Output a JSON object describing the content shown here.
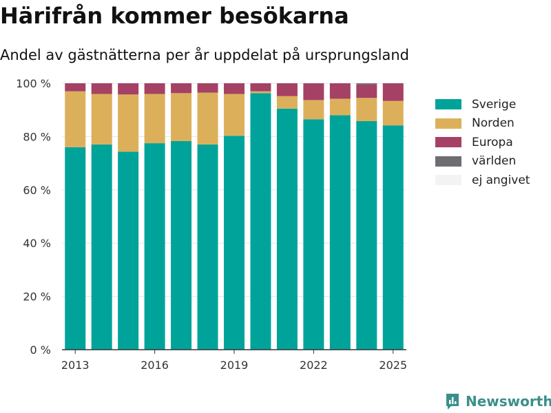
{
  "header": {
    "title": "Härifrån kommer besökarna",
    "subtitle": "Andel av gästnätterna per år uppdelat på ursprungsland"
  },
  "brand": {
    "name": "Newsworthy",
    "icon": "newsworthy-logo-icon",
    "color": "#3b8f8a"
  },
  "chart_data": {
    "type": "bar",
    "stacked": true,
    "categories": [
      "2013",
      "2014",
      "2015",
      "2016",
      "2017",
      "2018",
      "2019",
      "2020",
      "2021",
      "2022",
      "2023",
      "2024",
      "2025"
    ],
    "x_ticks": [
      "2013",
      "2016",
      "2019",
      "2022",
      "2025"
    ],
    "y_ticks": [
      "0 %",
      "20 %",
      "40 %",
      "60 %",
      "80 %",
      "100 %"
    ],
    "ylim": [
      0,
      100
    ],
    "grid": true,
    "legend_position": "right",
    "series": [
      {
        "name": "Sverige",
        "color": "#00a39a",
        "values": [
          76,
          77,
          74.3,
          77.5,
          78.3,
          77,
          80.3,
          96.3,
          90.5,
          86.5,
          88,
          85.8,
          84.2
        ]
      },
      {
        "name": "Norden",
        "color": "#dcb05b",
        "values": [
          21,
          19,
          21.5,
          18.5,
          18,
          19.5,
          15.7,
          0.7,
          4.7,
          7.2,
          6.2,
          8.7,
          9.2
        ]
      },
      {
        "name": "Europa",
        "color": "#a54165",
        "values": [
          3,
          4,
          4.2,
          4,
          3.7,
          3.5,
          4,
          3,
          4.8,
          6.3,
          5.8,
          5,
          6.6
        ]
      },
      {
        "name": "världen",
        "color": "#6d6e71",
        "values": [
          0,
          0,
          0,
          0,
          0,
          0,
          0,
          0,
          0,
          0,
          0,
          0.5,
          0
        ]
      },
      {
        "name": "ej angivet",
        "color": "#f3f3f3",
        "values": [
          0,
          0,
          0,
          0,
          0,
          0,
          0,
          0,
          0,
          0,
          0,
          0,
          0
        ]
      }
    ]
  }
}
